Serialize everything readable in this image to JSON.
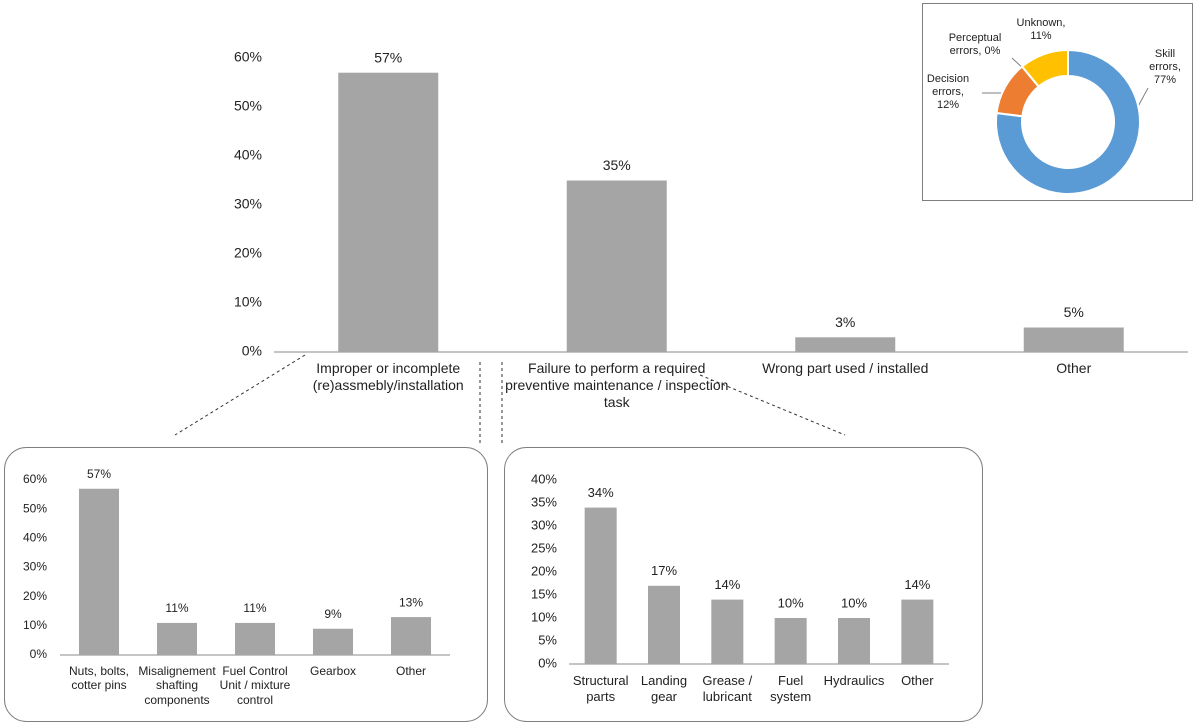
{
  "chart_data": [
    {
      "type": "bar",
      "color": "#a5a5a5",
      "categories": [
        "Improper or incomplete (re)assmebly/installation",
        "Failure to perform a required preventive maintenance / inspection task",
        "Wrong part used / installed",
        "Other"
      ],
      "values": [
        57,
        35,
        3,
        5
      ],
      "value_labels": [
        "57%",
        "35%",
        "3%",
        "5%"
      ],
      "ylim": [
        0,
        60
      ],
      "yticks": [
        {
          "value": 0,
          "label": "0%"
        },
        {
          "value": 10,
          "label": "10%"
        },
        {
          "value": 20,
          "label": "20%"
        },
        {
          "value": 30,
          "label": "30%"
        },
        {
          "value": 40,
          "label": "40%"
        },
        {
          "value": 50,
          "label": "50%"
        },
        {
          "value": 60,
          "label": "60%"
        }
      ]
    },
    {
      "type": "donut",
      "categories": [
        "Skill errors, 77%",
        "Decision errors, 12%",
        "Perceptual errors, 0%",
        "Unknown, 11%"
      ],
      "values": [
        77,
        12,
        0,
        11
      ],
      "colors": [
        "#5b9bd5",
        "#ed7d31",
        "#a5a5a5",
        "#ffc000"
      ]
    },
    {
      "type": "bar",
      "color": "#a5a5a5",
      "categories": [
        "Nuts, bolts, cotter pins",
        "Misalignement shafting components",
        "Fuel Control Unit / mixture control",
        "Gearbox",
        "Other"
      ],
      "values": [
        57,
        11,
        11,
        9,
        13
      ],
      "value_labels": [
        "57%",
        "11%",
        "11%",
        "9%",
        "13%"
      ],
      "ylim": [
        0,
        60
      ],
      "yticks": [
        {
          "value": 0,
          "label": "0%"
        },
        {
          "value": 10,
          "label": "10%"
        },
        {
          "value": 20,
          "label": "20%"
        },
        {
          "value": 30,
          "label": "30%"
        },
        {
          "value": 40,
          "label": "40%"
        },
        {
          "value": 50,
          "label": "50%"
        },
        {
          "value": 60,
          "label": "60%"
        }
      ]
    },
    {
      "type": "bar",
      "color": "#a5a5a5",
      "categories": [
        "Structural parts",
        "Landing gear",
        "Grease / lubricant",
        "Fuel system",
        "Hydraulics",
        "Other"
      ],
      "values": [
        34,
        17,
        14,
        10,
        10,
        14
      ],
      "value_labels": [
        "34%",
        "17%",
        "14%",
        "10%",
        "10%",
        "14%"
      ],
      "ylim": [
        0,
        40
      ],
      "yticks": [
        {
          "value": 0,
          "label": "0%"
        },
        {
          "value": 5,
          "label": "5%"
        },
        {
          "value": 10,
          "label": "10%"
        },
        {
          "value": 15,
          "label": "15%"
        },
        {
          "value": 20,
          "label": "20%"
        },
        {
          "value": 25,
          "label": "25%"
        },
        {
          "value": 30,
          "label": "30%"
        },
        {
          "value": 35,
          "label": "35%"
        },
        {
          "value": 40,
          "label": "40%"
        }
      ]
    }
  ]
}
